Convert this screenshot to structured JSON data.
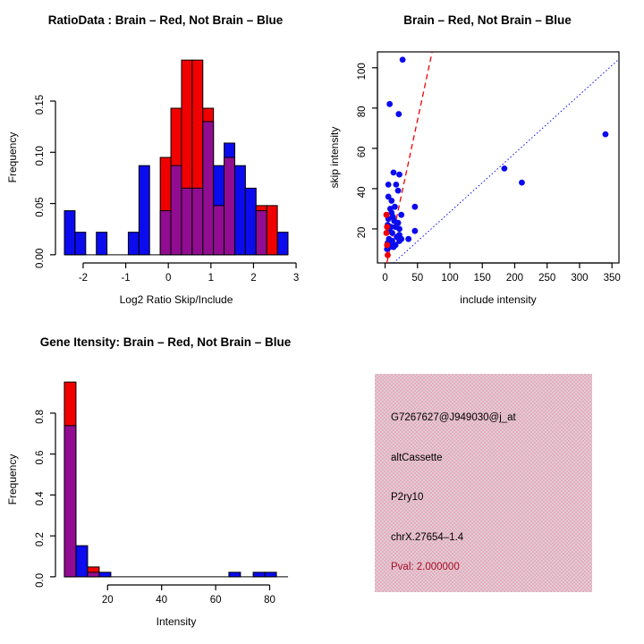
{
  "figure": {
    "background": "#ffffff"
  },
  "colors": {
    "red": "#f10000",
    "blue": "#0b0bee",
    "overlap": "#910c91",
    "axis": "#000000",
    "pval_text": "#a30f26",
    "info_pink": "#efaabe",
    "info_gray": "#d7ced5"
  },
  "chart_data": [
    {
      "type": "histogram",
      "title": "RatioData : Brain – Red, Not Brain – Blue",
      "xlabel": "Log2 Ratio Skip/Include",
      "ylabel": "Frequency",
      "xticks": [
        -2,
        -1,
        0,
        1,
        2,
        3
      ],
      "xtick_labels": [
        "-2",
        "-1",
        "0",
        "1",
        "2",
        "3"
      ],
      "yticks": [
        0,
        0.05,
        0.1,
        0.15
      ],
      "ytick_labels": [
        "0.00",
        "0.05",
        "0.10",
        "0.15"
      ],
      "xlim": [
        -2.65,
        3.02
      ],
      "ylim": [
        -0.008,
        0.198
      ],
      "grid": false,
      "bin_width": 0.25,
      "baseline": [
        -2.44,
        2.81
      ],
      "series": [
        {
          "name": "Not Brain",
          "color_key": "blue",
          "bins": [
            [
              -2.44,
              0.043
            ],
            [
              -2.19,
              0.022
            ],
            [
              -1.69,
              0.022
            ],
            [
              -0.94,
              0.022
            ],
            [
              -0.69,
              0.087
            ],
            [
              -0.19,
              0.043
            ],
            [
              0.06,
              0.087
            ],
            [
              0.31,
              0.065
            ],
            [
              0.56,
              0.065
            ],
            [
              0.81,
              0.13
            ],
            [
              1.06,
              0.087
            ],
            [
              1.31,
              0.109
            ],
            [
              1.56,
              0.087
            ],
            [
              1.81,
              0.065
            ],
            [
              2.06,
              0.043
            ],
            [
              2.56,
              0.022
            ]
          ]
        },
        {
          "name": "Brain",
          "color_key": "red",
          "bins": [
            [
              -0.19,
              0.095
            ],
            [
              0.06,
              0.143
            ],
            [
              0.31,
              0.19
            ],
            [
              0.56,
              0.19
            ],
            [
              0.81,
              0.143
            ],
            [
              1.06,
              0.048
            ],
            [
              1.31,
              0.095
            ],
            [
              2.06,
              0.048
            ],
            [
              2.31,
              0.048
            ]
          ]
        }
      ]
    },
    {
      "type": "scatter",
      "title": "Brain – Red, Not Brain – Blue",
      "xlabel": "include intensity",
      "ylabel": "skip intensity",
      "xticks": [
        0,
        50,
        100,
        150,
        200,
        250,
        300,
        350
      ],
      "xtick_labels": [
        "0",
        "50",
        "100",
        "150",
        "200",
        "250",
        "300",
        "350"
      ],
      "yticks": [
        20,
        40,
        60,
        80,
        100
      ],
      "ytick_labels": [
        "20",
        "40",
        "60",
        "80",
        "100"
      ],
      "xlim": [
        -11.8,
        360.8
      ],
      "ylim": [
        3.1,
        107.9
      ],
      "grid": false,
      "box": true,
      "series": [
        {
          "name": "Not Brain",
          "color_key": "blue",
          "points": [
            [
              27,
              104
            ],
            [
              7,
              82
            ],
            [
              21,
              77
            ],
            [
              340,
              67
            ],
            [
              184,
              50
            ],
            [
              211,
              43
            ],
            [
              13,
              48
            ],
            [
              22,
              47
            ],
            [
              5,
              42
            ],
            [
              17,
              42
            ],
            [
              20,
              39
            ],
            [
              5,
              36
            ],
            [
              10,
              34
            ],
            [
              46,
              31
            ],
            [
              15,
              31
            ],
            [
              8,
              30
            ],
            [
              10,
              28
            ],
            [
              25,
              27
            ],
            [
              12,
              26
            ],
            [
              5,
              25
            ],
            [
              14,
              24
            ],
            [
              20,
              23
            ],
            [
              4,
              22
            ],
            [
              9,
              21
            ],
            [
              16,
              21
            ],
            [
              22,
              20
            ],
            [
              6,
              19
            ],
            [
              46,
              19
            ],
            [
              11,
              18
            ],
            [
              22,
              17
            ],
            [
              18,
              16
            ],
            [
              36,
              15
            ],
            [
              6,
              15
            ],
            [
              25,
              15
            ],
            [
              11,
              14
            ],
            [
              22,
              14
            ],
            [
              4,
              13
            ],
            [
              9,
              12
            ],
            [
              16,
              12
            ],
            [
              7,
              11
            ],
            [
              13,
              11
            ],
            [
              3,
              10
            ]
          ]
        },
        {
          "name": "Brain",
          "color_key": "red",
          "points": [
            [
              2,
              27
            ],
            [
              3,
              21
            ],
            [
              2,
              18
            ],
            [
              3,
              12
            ],
            [
              4,
              7
            ]
          ]
        }
      ],
      "lines": [
        {
          "name": "brain-fit-line",
          "color_key": "red",
          "dash": "6,4",
          "width": 1.3,
          "x1": 2.7,
          "y1": 3.1,
          "x2": 72.6,
          "y2": 107.9
        },
        {
          "name": "notbrain-fit-line",
          "color_key": "blue",
          "dash": "1.5,2.5",
          "width": 1,
          "x1": 13,
          "y1": 3.1,
          "x2": 360.8,
          "y2": 104.3
        }
      ]
    },
    {
      "type": "histogram",
      "title": "Gene Itensity: Brain – Red, Not Brain – Blue",
      "xlabel": "Intensity",
      "ylabel": "Frequency",
      "xticks": [
        20,
        40,
        60,
        80
      ],
      "xtick_labels": [
        "20",
        "40",
        "60",
        "80"
      ],
      "yticks": [
        0,
        0.2,
        0.4,
        0.6,
        0.8
      ],
      "ytick_labels": [
        "0.0",
        "0.2",
        "0.4",
        "0.6",
        "0.8"
      ],
      "xlim": [
        0.7,
        90.1
      ],
      "ylim": [
        -0.04,
        0.992
      ],
      "grid": false,
      "bin_width": 4.3,
      "baseline": [
        4.0,
        86.8
      ],
      "series": [
        {
          "name": "Not Brain",
          "color_key": "blue",
          "bins": [
            [
              4.0,
              0.739
            ],
            [
              8.3,
              0.152
            ],
            [
              12.6,
              0.022
            ],
            [
              16.9,
              0.022
            ],
            [
              64.9,
              0.022
            ],
            [
              73.9,
              0.022
            ],
            [
              78.2,
              0.022
            ]
          ]
        },
        {
          "name": "Brain",
          "color_key": "red",
          "bins": [
            [
              4.0,
              0.952
            ],
            [
              12.6,
              0.048
            ]
          ]
        }
      ]
    }
  ],
  "info": {
    "lines": [
      "G7267627@J949030@j_at",
      "altCassette",
      "P2ry10",
      "chrX.27654–1.4",
      "Pval: 2.000000"
    ]
  }
}
